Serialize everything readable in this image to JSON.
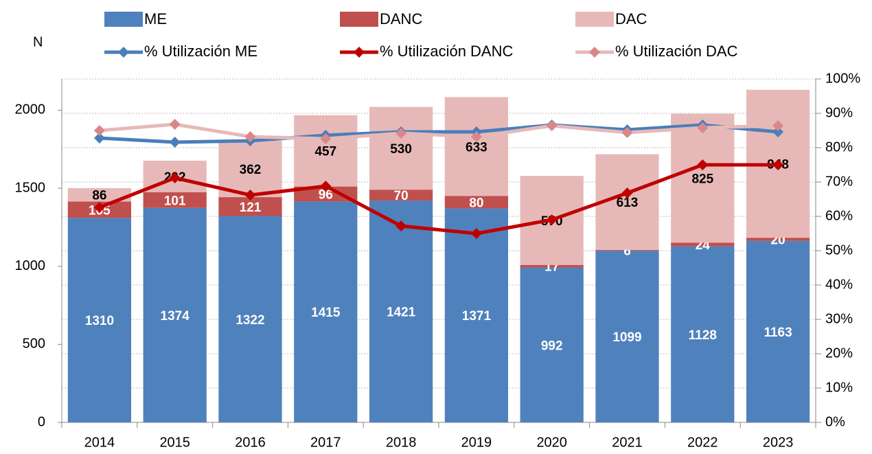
{
  "chart_data": {
    "type": "bar",
    "stacked": true,
    "ylabel": "N",
    "categories": [
      "2014",
      "2015",
      "2016",
      "2017",
      "2018",
      "2019",
      "2020",
      "2021",
      "2022",
      "2023"
    ],
    "series": [
      {
        "name": "ME",
        "type": "bar",
        "color": "#4f81bd",
        "label_color": "#ffffff",
        "values": [
          1310,
          1374,
          1322,
          1415,
          1421,
          1371,
          992,
          1099,
          1128,
          1163
        ]
      },
      {
        "name": "DANC",
        "type": "bar",
        "color": "#c0504d",
        "label_color": "#ffffff",
        "values": [
          105,
          101,
          121,
          96,
          70,
          80,
          17,
          6,
          24,
          20
        ]
      },
      {
        "name": "DAC",
        "type": "bar",
        "color": "#e6b9b8",
        "label_color": "#000000",
        "values": [
          86,
          202,
          362,
          457,
          530,
          633,
          570,
          613,
          825,
          948
        ]
      },
      {
        "name": "% Utilización ME",
        "type": "line",
        "axis": "y2",
        "color": "#4a7ebb",
        "marker_color": "#4a7ebb",
        "values": [
          82.8,
          81.6,
          82,
          83.6,
          84.6,
          84.6,
          86.6,
          85.2,
          86.6,
          84.6
        ]
      },
      {
        "name": "% Utilización DANC",
        "type": "line",
        "axis": "y2",
        "color": "#c00000",
        "marker_color": "#c00000",
        "values": [
          62.6,
          71.2,
          66.2,
          68.8,
          57.2,
          55,
          59,
          66.8,
          75,
          75
        ]
      },
      {
        "name": "% Utilización DAC",
        "type": "line",
        "axis": "y2",
        "color": "#e6b9b8",
        "marker_color": "#d9888a",
        "values": [
          85,
          86.8,
          83.2,
          82.6,
          84.2,
          83.2,
          86.4,
          84.4,
          85.8,
          86.4
        ]
      }
    ],
    "ylim": [
      0,
      2200
    ],
    "yticks": [
      0,
      500,
      1000,
      1500,
      2000
    ],
    "y2lim": [
      0,
      100
    ],
    "y2ticks": [
      {
        "value": 0,
        "label": "0%"
      },
      {
        "value": 10,
        "label": "10%"
      },
      {
        "value": 20,
        "label": "20%"
      },
      {
        "value": 30,
        "label": "30%"
      },
      {
        "value": 40,
        "label": "40%"
      },
      {
        "value": 50,
        "label": "50%"
      },
      {
        "value": 60,
        "label": "60%"
      },
      {
        "value": 70,
        "label": "70%"
      },
      {
        "value": 80,
        "label": "80%"
      },
      {
        "value": 90,
        "label": "90%"
      },
      {
        "value": 100,
        "label": "100%"
      }
    ],
    "grid": true
  }
}
